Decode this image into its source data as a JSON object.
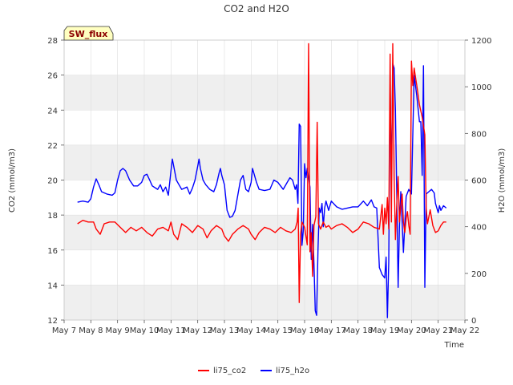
{
  "chart_data": {
    "type": "line",
    "title": "CO2 and H2O",
    "badge": "SW_flux",
    "xlabel": "Time",
    "ylabel_left": "CO2 (mmol/m3)",
    "ylabel_right": "H2O (mmol/m3)",
    "xlim": [
      7,
      22
    ],
    "ylim_left": [
      12,
      28
    ],
    "ylim_right": [
      0,
      1200
    ],
    "x_ticks": [
      7,
      8,
      9,
      10,
      11,
      12,
      13,
      14,
      15,
      16,
      17,
      18,
      19,
      20,
      21,
      22
    ],
    "x_tick_labels": [
      "May 7",
      "May 8",
      "May 9",
      "May 10",
      "May 11",
      "May 12",
      "May 13",
      "May 14",
      "May 15",
      "May 16",
      "May 17",
      "May 18",
      "May 19",
      "May 20",
      "May 21",
      "May 22"
    ],
    "y_left_ticks": [
      12,
      14,
      16,
      18,
      20,
      22,
      24,
      26,
      28
    ],
    "y_right_ticks": [
      0,
      200,
      400,
      600,
      800,
      1000,
      1200
    ],
    "grid": true,
    "legend_position": "bottom-center",
    "series": [
      {
        "name": "li75_co2",
        "axis": "left",
        "color": "#ff0000",
        "points": [
          [
            7.5,
            17.5
          ],
          [
            7.7,
            17.7
          ],
          [
            7.9,
            17.6
          ],
          [
            8.1,
            17.6
          ],
          [
            8.2,
            17.2
          ],
          [
            8.35,
            16.9
          ],
          [
            8.5,
            17.5
          ],
          [
            8.7,
            17.6
          ],
          [
            8.9,
            17.6
          ],
          [
            9.1,
            17.3
          ],
          [
            9.3,
            17.0
          ],
          [
            9.5,
            17.3
          ],
          [
            9.7,
            17.1
          ],
          [
            9.9,
            17.3
          ],
          [
            10.1,
            17.0
          ],
          [
            10.3,
            16.8
          ],
          [
            10.5,
            17.2
          ],
          [
            10.7,
            17.3
          ],
          [
            10.9,
            17.1
          ],
          [
            11.0,
            17.6
          ],
          [
            11.1,
            16.9
          ],
          [
            11.25,
            16.6
          ],
          [
            11.4,
            17.5
          ],
          [
            11.6,
            17.3
          ],
          [
            11.8,
            17.0
          ],
          [
            12.0,
            17.4
          ],
          [
            12.2,
            17.2
          ],
          [
            12.35,
            16.7
          ],
          [
            12.5,
            17.1
          ],
          [
            12.7,
            17.4
          ],
          [
            12.9,
            17.2
          ],
          [
            13.0,
            16.8
          ],
          [
            13.15,
            16.5
          ],
          [
            13.3,
            16.9
          ],
          [
            13.5,
            17.2
          ],
          [
            13.7,
            17.4
          ],
          [
            13.9,
            17.2
          ],
          [
            14.0,
            16.9
          ],
          [
            14.15,
            16.6
          ],
          [
            14.3,
            17.0
          ],
          [
            14.5,
            17.3
          ],
          [
            14.7,
            17.2
          ],
          [
            14.9,
            17.0
          ],
          [
            15.1,
            17.3
          ],
          [
            15.3,
            17.1
          ],
          [
            15.5,
            17.0
          ],
          [
            15.65,
            17.2
          ],
          [
            15.72,
            17.6
          ],
          [
            15.76,
            18.4
          ],
          [
            15.8,
            13.0
          ],
          [
            15.85,
            16.9
          ],
          [
            15.9,
            17.6
          ],
          [
            16.0,
            17.3
          ],
          [
            16.1,
            16.3
          ],
          [
            16.15,
            27.8
          ],
          [
            16.2,
            15.9
          ],
          [
            16.25,
            17.0
          ],
          [
            16.3,
            14.5
          ],
          [
            16.35,
            17.4
          ],
          [
            16.42,
            17.9
          ],
          [
            16.47,
            23.3
          ],
          [
            16.52,
            17.5
          ],
          [
            16.6,
            17.2
          ],
          [
            16.7,
            17.6
          ],
          [
            16.8,
            17.3
          ],
          [
            16.9,
            17.4
          ],
          [
            17.0,
            17.2
          ],
          [
            17.2,
            17.4
          ],
          [
            17.4,
            17.5
          ],
          [
            17.6,
            17.3
          ],
          [
            17.8,
            17.0
          ],
          [
            18.0,
            17.2
          ],
          [
            18.2,
            17.6
          ],
          [
            18.4,
            17.5
          ],
          [
            18.6,
            17.3
          ],
          [
            18.8,
            17.2
          ],
          [
            18.9,
            18.6
          ],
          [
            18.95,
            16.9
          ],
          [
            19.0,
            18.4
          ],
          [
            19.05,
            17.5
          ],
          [
            19.1,
            19.0
          ],
          [
            19.15,
            17.2
          ],
          [
            19.2,
            27.2
          ],
          [
            19.25,
            17.6
          ],
          [
            19.3,
            27.8
          ],
          [
            19.35,
            20.2
          ],
          [
            19.4,
            16.6
          ],
          [
            19.45,
            18.6
          ],
          [
            19.5,
            20.2
          ],
          [
            19.55,
            17.6
          ],
          [
            19.6,
            18.5
          ],
          [
            19.65,
            19.2
          ],
          [
            19.7,
            17.6
          ],
          [
            19.75,
            17.0
          ],
          [
            19.8,
            17.8
          ],
          [
            19.85,
            18.2
          ],
          [
            19.9,
            17.4
          ],
          [
            19.95,
            16.9
          ],
          [
            20.0,
            26.8
          ],
          [
            20.05,
            25.4
          ],
          [
            20.1,
            26.4
          ],
          [
            20.15,
            25.9
          ],
          [
            20.2,
            25.4
          ],
          [
            20.3,
            24.3
          ],
          [
            20.4,
            23.6
          ],
          [
            20.5,
            22.6
          ],
          [
            20.55,
            18.4
          ],
          [
            20.6,
            17.5
          ],
          [
            20.7,
            18.3
          ],
          [
            20.8,
            17.4
          ],
          [
            20.9,
            17.0
          ],
          [
            21.0,
            17.1
          ],
          [
            21.1,
            17.4
          ],
          [
            21.2,
            17.6
          ],
          [
            21.3,
            17.6
          ]
        ]
      },
      {
        "name": "li75_h2o",
        "axis": "right",
        "color": "#0000ff",
        "points": [
          [
            7.5,
            505
          ],
          [
            7.7,
            510
          ],
          [
            7.9,
            505
          ],
          [
            8.0,
            520
          ],
          [
            8.1,
            570
          ],
          [
            8.2,
            605
          ],
          [
            8.3,
            580
          ],
          [
            8.4,
            550
          ],
          [
            8.6,
            540
          ],
          [
            8.8,
            535
          ],
          [
            8.9,
            545
          ],
          [
            9.0,
            600
          ],
          [
            9.1,
            640
          ],
          [
            9.2,
            650
          ],
          [
            9.3,
            640
          ],
          [
            9.45,
            600
          ],
          [
            9.6,
            575
          ],
          [
            9.75,
            575
          ],
          [
            9.9,
            590
          ],
          [
            10.0,
            620
          ],
          [
            10.1,
            625
          ],
          [
            10.2,
            600
          ],
          [
            10.3,
            575
          ],
          [
            10.5,
            560
          ],
          [
            10.6,
            580
          ],
          [
            10.7,
            550
          ],
          [
            10.8,
            570
          ],
          [
            10.9,
            535
          ],
          [
            11.0,
            640
          ],
          [
            11.05,
            690
          ],
          [
            11.1,
            660
          ],
          [
            11.2,
            600
          ],
          [
            11.3,
            580
          ],
          [
            11.4,
            560
          ],
          [
            11.6,
            570
          ],
          [
            11.7,
            540
          ],
          [
            11.8,
            565
          ],
          [
            11.9,
            600
          ],
          [
            12.0,
            660
          ],
          [
            12.05,
            690
          ],
          [
            12.1,
            650
          ],
          [
            12.2,
            600
          ],
          [
            12.3,
            580
          ],
          [
            12.45,
            560
          ],
          [
            12.6,
            550
          ],
          [
            12.7,
            580
          ],
          [
            12.8,
            630
          ],
          [
            12.85,
            650
          ],
          [
            12.9,
            620
          ],
          [
            13.0,
            580
          ],
          [
            13.1,
            470
          ],
          [
            13.2,
            440
          ],
          [
            13.3,
            445
          ],
          [
            13.4,
            470
          ],
          [
            13.6,
            600
          ],
          [
            13.7,
            620
          ],
          [
            13.8,
            560
          ],
          [
            13.9,
            550
          ],
          [
            14.0,
            590
          ],
          [
            14.05,
            650
          ],
          [
            14.1,
            630
          ],
          [
            14.2,
            590
          ],
          [
            14.3,
            560
          ],
          [
            14.5,
            555
          ],
          [
            14.7,
            560
          ],
          [
            14.85,
            600
          ],
          [
            15.0,
            590
          ],
          [
            15.2,
            560
          ],
          [
            15.35,
            590
          ],
          [
            15.45,
            610
          ],
          [
            15.55,
            600
          ],
          [
            15.65,
            560
          ],
          [
            15.7,
            580
          ],
          [
            15.75,
            500
          ],
          [
            15.8,
            840
          ],
          [
            15.85,
            830
          ],
          [
            15.9,
            320
          ],
          [
            15.95,
            380
          ],
          [
            16.0,
            670
          ],
          [
            16.05,
            610
          ],
          [
            16.1,
            650
          ],
          [
            16.15,
            610
          ],
          [
            16.2,
            570
          ],
          [
            16.25,
            260
          ],
          [
            16.3,
            410
          ],
          [
            16.35,
            240
          ],
          [
            16.4,
            40
          ],
          [
            16.45,
            20
          ],
          [
            16.5,
            300
          ],
          [
            16.55,
            480
          ],
          [
            16.6,
            460
          ],
          [
            16.65,
            500
          ],
          [
            16.7,
            400
          ],
          [
            16.75,
            480
          ],
          [
            16.8,
            510
          ],
          [
            16.9,
            470
          ],
          [
            17.0,
            510
          ],
          [
            17.2,
            485
          ],
          [
            17.4,
            475
          ],
          [
            17.6,
            480
          ],
          [
            17.8,
            485
          ],
          [
            18.0,
            485
          ],
          [
            18.2,
            510
          ],
          [
            18.35,
            490
          ],
          [
            18.5,
            515
          ],
          [
            18.6,
            485
          ],
          [
            18.7,
            480
          ],
          [
            18.8,
            225
          ],
          [
            18.9,
            195
          ],
          [
            19.0,
            180
          ],
          [
            19.05,
            270
          ],
          [
            19.1,
            10
          ],
          [
            19.15,
            250
          ],
          [
            19.2,
            1000
          ],
          [
            19.25,
            600
          ],
          [
            19.3,
            1100
          ],
          [
            19.35,
            1080
          ],
          [
            19.4,
            900
          ],
          [
            19.45,
            540
          ],
          [
            19.5,
            140
          ],
          [
            19.55,
            400
          ],
          [
            19.6,
            550
          ],
          [
            19.65,
            420
          ],
          [
            19.7,
            290
          ],
          [
            19.8,
            530
          ],
          [
            19.9,
            560
          ],
          [
            20.0,
            540
          ],
          [
            20.1,
            1050
          ],
          [
            20.2,
            960
          ],
          [
            20.3,
            850
          ],
          [
            20.35,
            850
          ],
          [
            20.4,
            620
          ],
          [
            20.45,
            1090
          ],
          [
            20.5,
            140
          ],
          [
            20.55,
            540
          ],
          [
            20.65,
            550
          ],
          [
            20.75,
            560
          ],
          [
            20.85,
            545
          ],
          [
            20.9,
            500
          ],
          [
            20.95,
            480
          ],
          [
            21.0,
            460
          ],
          [
            21.05,
            490
          ],
          [
            21.1,
            470
          ],
          [
            21.2,
            490
          ],
          [
            21.3,
            480
          ]
        ]
      }
    ]
  }
}
